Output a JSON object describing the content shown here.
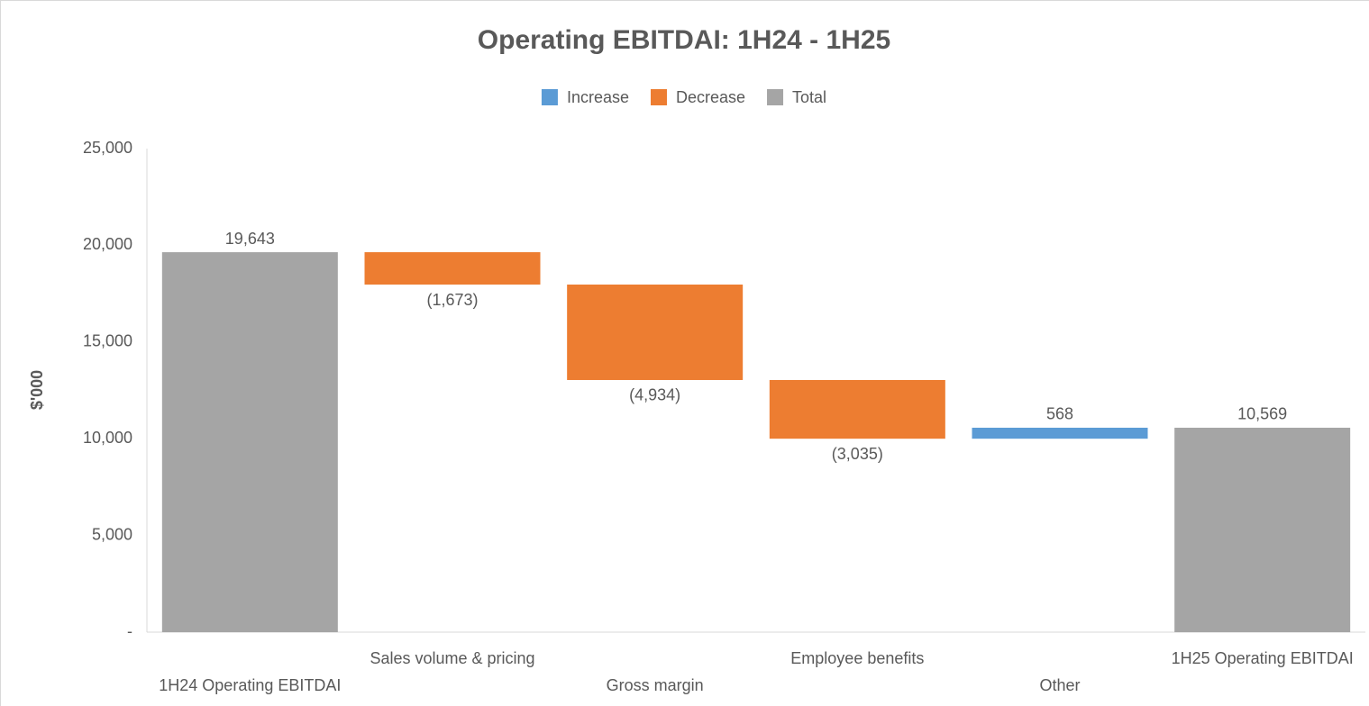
{
  "chart_data": {
    "type": "waterfall",
    "title": "Operating EBITDAI: 1H24 - 1H25",
    "y_label": "$'000",
    "legend": [
      {
        "name": "Increase",
        "color": "#5b9bd5"
      },
      {
        "name": "Decrease",
        "color": "#ed7d31"
      },
      {
        "name": "Total",
        "color": "#a5a5a5"
      }
    ],
    "categories": [
      "1H24 Operating EBITDAI",
      "Sales volume & pricing",
      "Gross margin",
      "Employee benefits",
      "Other",
      "1H25 Operating EBITDAI"
    ],
    "measures": [
      "total",
      "relative",
      "relative",
      "relative",
      "relative",
      "total"
    ],
    "values": [
      19643,
      -1673,
      -4934,
      -3035,
      568,
      10569
    ],
    "value_labels": [
      "19,643",
      "(1,673)",
      "(4,934)",
      "(3,035)",
      "568",
      "10,569"
    ],
    "ylim": [
      0,
      25000
    ],
    "yticks": [
      {
        "value": 0,
        "label": "-"
      },
      {
        "value": 5000,
        "label": "5,000"
      },
      {
        "value": 10000,
        "label": "10,000"
      },
      {
        "value": 15000,
        "label": "15,000"
      },
      {
        "value": 20000,
        "label": "20,000"
      },
      {
        "value": 25000,
        "label": "25,000"
      }
    ],
    "grid": false
  }
}
